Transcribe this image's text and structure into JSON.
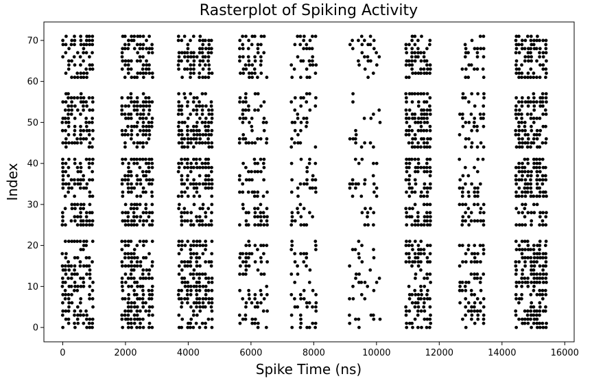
{
  "chart_data": {
    "type": "scatter",
    "title": "Rasterplot of Spiking Activity",
    "xlabel": "Spike Time (ns)",
    "ylabel": "Index",
    "xlim": [
      -600,
      16300
    ],
    "ylim": [
      -3.5,
      74.5
    ],
    "x_ticks": [
      0,
      2000,
      4000,
      6000,
      8000,
      10000,
      12000,
      14000,
      16000
    ],
    "y_ticks": [
      0,
      10,
      20,
      30,
      40,
      50,
      60,
      70
    ],
    "grid": false,
    "legend": "none",
    "marker_color": "#000000",
    "bursts": [
      {
        "x_range": [
          0,
          950
        ],
        "density": 0.5
      },
      {
        "x_range": [
          1900,
          2850
        ],
        "density": 0.55
      },
      {
        "x_range": [
          3700,
          4750
        ],
        "density": 0.55
      },
      {
        "x_range": [
          5650,
          6550
        ],
        "density": 0.3
      },
      {
        "x_range": [
          7300,
          8150
        ],
        "density": 0.25
      },
      {
        "x_range": [
          9150,
          10150
        ],
        "density": 0.15
      },
      {
        "x_range": [
          10950,
          11750
        ],
        "density": 0.5
      },
      {
        "x_range": [
          12650,
          13500
        ],
        "density": 0.35
      },
      {
        "x_range": [
          14450,
          15450
        ],
        "density": 0.55
      }
    ],
    "silent_indices": [
      22,
      23,
      24,
      31,
      42,
      43,
      58,
      59,
      60
    ]
  }
}
